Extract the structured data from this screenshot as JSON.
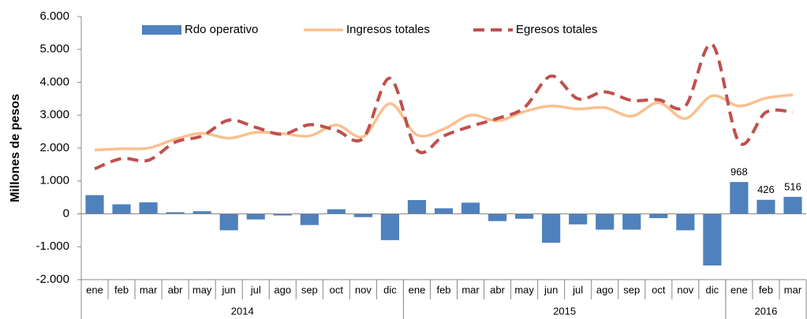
{
  "chart_data": {
    "type": "bar-line",
    "y_axis_label": "Millones de pesos",
    "categories": [
      "ene",
      "feb",
      "mar",
      "abr",
      "may",
      "jun",
      "jul",
      "ago",
      "sep",
      "oct",
      "nov",
      "dic",
      "ene",
      "feb",
      "mar",
      "abr",
      "may",
      "jun",
      "jul",
      "ago",
      "sep",
      "oct",
      "nov",
      "dic",
      "ene",
      "feb",
      "mar"
    ],
    "groups": [
      {
        "label": "2014",
        "count": 12
      },
      {
        "label": "2015",
        "count": 12
      },
      {
        "label": "2016",
        "count": 3
      }
    ],
    "series": [
      {
        "name": "Rdo operativo",
        "type": "bar",
        "color": "#4f81bd",
        "values": [
          570,
          290,
          350,
          50,
          80,
          -500,
          -170,
          -50,
          -340,
          140,
          -100,
          -800,
          420,
          170,
          340,
          -220,
          -150,
          -880,
          -320,
          -480,
          -480,
          -130,
          -500,
          -1570,
          968,
          426,
          516
        ],
        "value_labels": [
          null,
          null,
          null,
          null,
          null,
          null,
          null,
          null,
          null,
          null,
          null,
          null,
          null,
          null,
          null,
          null,
          null,
          null,
          null,
          null,
          null,
          null,
          null,
          null,
          "968",
          "426",
          "516"
        ]
      },
      {
        "name": "Ingresos totales",
        "type": "line",
        "color": "#fac08f",
        "dashed": false,
        "values": [
          1940,
          1980,
          2000,
          2270,
          2450,
          2300,
          2480,
          2440,
          2370,
          2700,
          2350,
          3350,
          2400,
          2580,
          3000,
          2830,
          3110,
          3280,
          3190,
          3230,
          2970,
          3380,
          2900,
          3590,
          3280,
          3520,
          3620
        ]
      },
      {
        "name": "Egresos totales",
        "type": "line",
        "color": "#c0504d",
        "dashed": true,
        "values": [
          1370,
          1680,
          1630,
          2180,
          2370,
          2850,
          2630,
          2420,
          2710,
          2540,
          2300,
          4120,
          1940,
          2370,
          2660,
          2900,
          3230,
          4190,
          3500,
          3710,
          3450,
          3470,
          3280,
          5150,
          2180,
          3090,
          3090
        ]
      }
    ],
    "ylim": [
      -2000,
      6000
    ],
    "yticks": [
      {
        "value": -2000,
        "label": "-2.000"
      },
      {
        "value": -1000,
        "label": "-1.000"
      },
      0,
      {
        "value": 1000,
        "label": "1.000"
      },
      {
        "value": 2000,
        "label": "2.000"
      },
      {
        "value": 3000,
        "label": "3.000"
      },
      {
        "value": 4000,
        "label": "4.000"
      },
      {
        "value": 5000,
        "label": "5.000"
      },
      {
        "value": 6000,
        "label": "6.000"
      }
    ],
    "legend": "top"
  }
}
